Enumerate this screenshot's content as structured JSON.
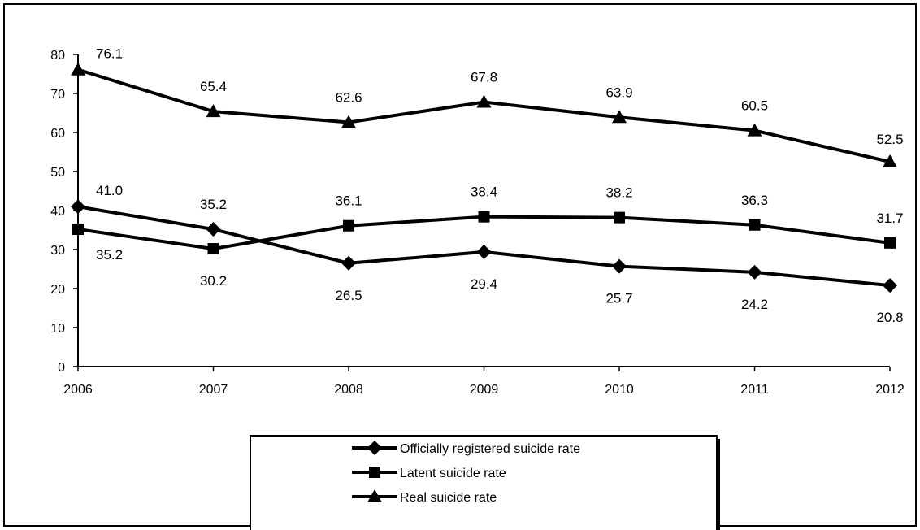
{
  "chart_data": {
    "type": "line",
    "title": "",
    "xlabel": "",
    "ylabel": "",
    "x": [
      "2006",
      "2007",
      "2008",
      "2009",
      "2010",
      "2011",
      "2012"
    ],
    "ylim": [
      0,
      80
    ],
    "yticks": [
      "0",
      "10",
      "20",
      "30",
      "40",
      "50",
      "60",
      "70",
      "80"
    ],
    "grid": false,
    "legend_position": "bottom-center",
    "series": [
      {
        "name": "Officially registered suicide rate",
        "marker": "diamond",
        "values": [
          41.0,
          35.2,
          26.5,
          29.4,
          25.7,
          24.2,
          20.8
        ],
        "labels": [
          "41.0",
          "35.2",
          "26.5",
          "29.4",
          "25.7",
          "24.2",
          "20.8"
        ]
      },
      {
        "name": "Latent suicide rate",
        "marker": "square",
        "values": [
          35.2,
          30.2,
          36.1,
          38.4,
          38.2,
          36.3,
          31.7
        ],
        "labels": [
          "35.2",
          "30.2",
          "36.1",
          "38.4",
          "38.2",
          "36.3",
          "31.7"
        ]
      },
      {
        "name": "Real suicide rate",
        "marker": "triangle",
        "values": [
          76.1,
          65.4,
          62.6,
          67.8,
          63.9,
          60.5,
          52.5
        ],
        "labels": [
          "76.1",
          "65.4",
          "62.6",
          "67.8",
          "63.9",
          "60.5",
          "52.5"
        ]
      }
    ]
  }
}
